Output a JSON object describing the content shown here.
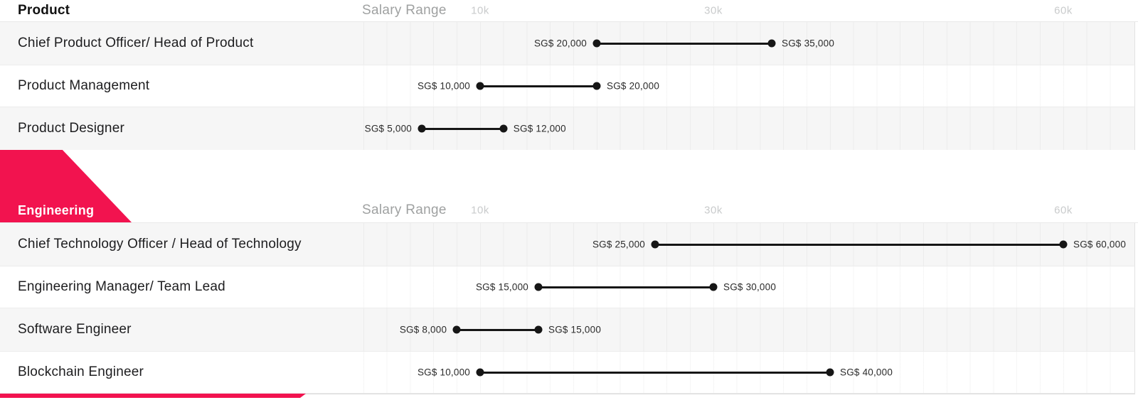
{
  "accent_color": "#F2134F",
  "axis": {
    "salary_range_label": "Salary Range",
    "ticks": [
      {
        "label": "10k",
        "k": 10
      },
      {
        "label": "30k",
        "k": 30
      },
      {
        "label": "60k",
        "k": 60
      }
    ]
  },
  "sections": [
    {
      "title": "Product",
      "rows": [
        {
          "role": "Chief Product Officer/ Head of Product",
          "min_label": "SG$ 20,000",
          "max_label": "SG$ 35,000",
          "min_k": 20,
          "max_k": 35
        },
        {
          "role": "Product Management",
          "min_label": "SG$ 10,000",
          "max_label": "SG$ 20,000",
          "min_k": 10,
          "max_k": 20
        },
        {
          "role": "Product Designer",
          "min_label": "SG$ 5,000",
          "max_label": "SG$ 12,000",
          "min_k": 5,
          "max_k": 12
        }
      ]
    },
    {
      "title": "Engineering",
      "rows": [
        {
          "role": "Chief Technology Officer / Head of Technology",
          "min_label": "SG$ 25,000",
          "max_label": "SG$ 60,000",
          "min_k": 25,
          "max_k": 60
        },
        {
          "role": "Engineering Manager/ Team Lead",
          "min_label": "SG$ 15,000",
          "max_label": "SG$ 30,000",
          "min_k": 15,
          "max_k": 30
        },
        {
          "role": "Software Engineer",
          "min_label": "SG$ 8,000",
          "max_label": "SG$ 15,000",
          "min_k": 8,
          "max_k": 15
        },
        {
          "role": "Blockchain Engineer",
          "min_label": "SG$ 10,000",
          "max_label": "SG$ 40,000",
          "min_k": 10,
          "max_k": 40
        }
      ]
    }
  ],
  "chart_data": [
    {
      "type": "bar",
      "subtype": "horizontal-dumbbell-range",
      "title": "Product",
      "categories": [
        "Chief Product Officer/ Head of Product",
        "Product Management",
        "Product Designer"
      ],
      "series": [
        {
          "name": "Salary Range (SG$)",
          "min": [
            20000,
            10000,
            5000
          ],
          "max": [
            35000,
            20000,
            12000
          ]
        }
      ],
      "xlabel": "Salary Range",
      "x_ticks": [
        "10k",
        "30k",
        "60k"
      ],
      "xlim": [
        0,
        66000
      ],
      "grid": true,
      "legend": false
    },
    {
      "type": "bar",
      "subtype": "horizontal-dumbbell-range",
      "title": "Engineering",
      "categories": [
        "Chief Technology Officer / Head of Technology",
        "Engineering Manager/ Team Lead",
        "Software Engineer",
        "Blockchain Engineer"
      ],
      "series": [
        {
          "name": "Salary Range (SG$)",
          "min": [
            25000,
            15000,
            8000,
            10000
          ],
          "max": [
            60000,
            30000,
            15000,
            40000
          ]
        }
      ],
      "xlabel": "Salary Range",
      "x_ticks": [
        "10k",
        "30k",
        "60k"
      ],
      "xlim": [
        0,
        66000
      ],
      "grid": true,
      "legend": false
    }
  ]
}
